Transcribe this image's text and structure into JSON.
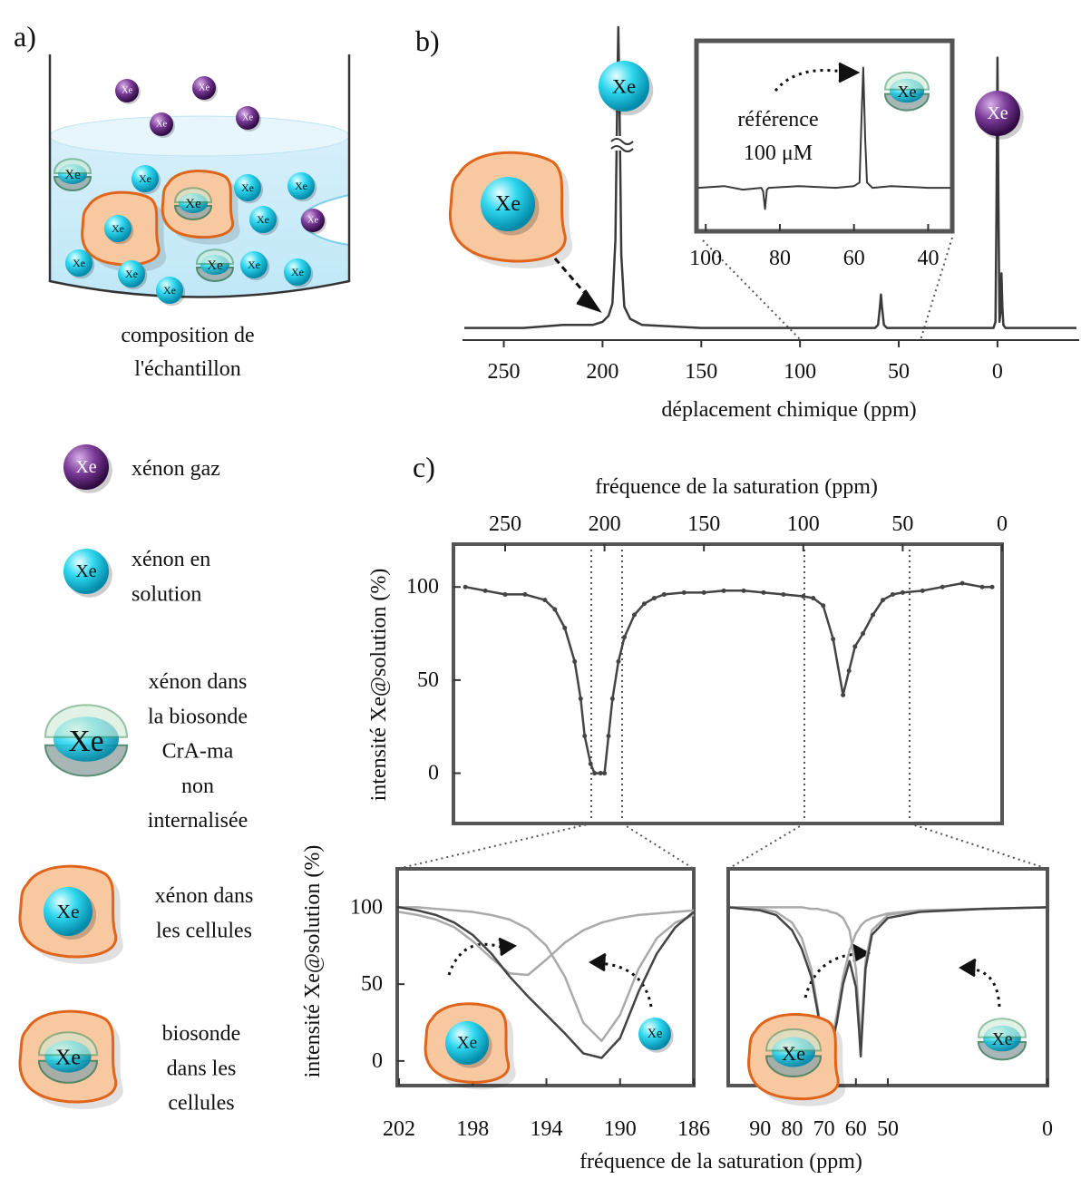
{
  "panels": {
    "a": "a)",
    "b": "b)",
    "c": "c)"
  },
  "icon_label": "Xe",
  "sample_caption": [
    "composition de",
    "l'échantillon"
  ],
  "legend": [
    {
      "lines": [
        "xénon gaz"
      ]
    },
    {
      "lines": [
        "xénon en",
        "solution"
      ]
    },
    {
      "lines": [
        "xénon dans",
        "la biosonde",
        "CrA-ma",
        "non",
        "internalisée"
      ]
    },
    {
      "lines": [
        "xénon dans",
        "les cellules"
      ]
    },
    {
      "lines": [
        "biosonde",
        "dans les",
        "cellules"
      ]
    }
  ],
  "chart_data": [
    {
      "type": "line",
      "x_label": "déplacement chimique (ppm)",
      "xlim": [
        270,
        -40
      ],
      "xticks": [
        250,
        200,
        150,
        100,
        50,
        0
      ],
      "ylim": [
        0,
        100
      ],
      "x": [
        270,
        240,
        220,
        205,
        200,
        197,
        195,
        193.5,
        192.5,
        192,
        191.5,
        190.5,
        189,
        186,
        180,
        150,
        120,
        100,
        80,
        62,
        60.5,
        59.5,
        59,
        58.5,
        57.5,
        56,
        40,
        20,
        5,
        2,
        1,
        0.5,
        0,
        -0.5,
        -1,
        -1.5,
        -2,
        -2.5,
        -3,
        -4,
        -6,
        -15,
        -30,
        -40
      ],
      "series": [
        {
          "color": "#3a3a3a",
          "values": [
            1,
            1,
            2,
            2,
            3,
            5,
            9,
            30,
            80,
            100,
            80,
            25,
            8,
            4,
            2,
            1,
            1,
            1,
            1,
            1,
            2,
            8,
            12,
            8,
            2,
            1,
            1,
            1,
            1,
            1,
            3,
            40,
            90,
            40,
            3,
            6,
            19,
            8,
            2,
            1,
            1,
            1,
            1,
            1
          ]
        }
      ]
    },
    {
      "type": "line",
      "annotations": [
        "référence",
        "100 μM"
      ],
      "xlim": [
        102,
        34
      ],
      "xticks": [
        100,
        80,
        60,
        40
      ],
      "ylim": [
        0,
        100
      ],
      "x": [
        102,
        95,
        90,
        85,
        84.5,
        84,
        83.5,
        83,
        75,
        65,
        60,
        58.5,
        58,
        57.5,
        57,
        56.5,
        55,
        50,
        40,
        34
      ],
      "series": [
        {
          "color": "#3a3a3a",
          "values": [
            22,
            23,
            21,
            22,
            20,
            10,
            21,
            22,
            23,
            22,
            23,
            25,
            60,
            90,
            50,
            25,
            22,
            23,
            22,
            22
          ]
        }
      ]
    },
    {
      "type": "line",
      "x_label": "fréquence de la saturation (ppm)",
      "y_label": "intensité Xe@solution (%)",
      "xlim": [
        276,
        0
      ],
      "xticks": [
        250,
        200,
        150,
        100,
        50,
        0
      ],
      "ylim": [
        -27,
        123
      ],
      "yticks": [
        0,
        50,
        100
      ],
      "markers": true,
      "x": [
        270,
        260,
        250,
        240,
        230,
        225,
        220,
        215,
        212,
        210,
        207,
        205,
        202,
        200,
        198,
        196,
        193,
        190,
        185,
        180,
        175,
        170,
        160,
        150,
        140,
        130,
        120,
        110,
        100,
        95,
        90,
        85,
        80,
        77,
        74,
        70,
        65,
        60,
        55,
        50,
        40,
        30,
        20,
        10,
        5
      ],
      "series": [
        {
          "color": "#444444",
          "values": [
            100,
            98,
            96,
            96,
            93,
            88,
            78,
            60,
            40,
            20,
            5,
            0,
            0,
            0,
            20,
            40,
            60,
            73,
            85,
            91,
            94,
            96,
            97,
            97,
            98,
            98,
            97,
            96,
            95,
            94,
            90,
            72,
            42,
            55,
            68,
            75,
            85,
            93,
            96,
            97,
            98,
            100,
            102,
            100,
            100
          ]
        }
      ]
    },
    {
      "type": "line",
      "x_label": "fréquence de la saturation (ppm)",
      "y_label": "intensité Xe@solution (%)",
      "xlim": [
        202.1,
        186
      ],
      "xticks": [
        202,
        198,
        194,
        190,
        186
      ],
      "ylim": [
        -16,
        125
      ],
      "yticks": [
        0,
        50,
        100
      ],
      "x": [
        202,
        201,
        200,
        199,
        198,
        197,
        196,
        195,
        194,
        193,
        192,
        191,
        190,
        189,
        188,
        187,
        186
      ],
      "series": [
        {
          "color": "#aaaaaa",
          "values": [
            97,
            95,
            92,
            87,
            78,
            67,
            57,
            56,
            66,
            77,
            85,
            90,
            93,
            95,
            96,
            97,
            98
          ]
        },
        {
          "color": "#aaaaaa",
          "values": [
            100,
            100,
            99,
            98,
            97,
            95,
            92,
            86,
            75,
            55,
            25,
            13,
            30,
            60,
            80,
            90,
            95
          ]
        },
        {
          "color": "#444444",
          "values": [
            100,
            98,
            95,
            90,
            82,
            70,
            55,
            42,
            30,
            18,
            5,
            2,
            15,
            45,
            70,
            87,
            97
          ]
        }
      ]
    },
    {
      "type": "line",
      "xlim": [
        100,
        0
      ],
      "xticks": [
        90,
        80,
        70,
        60,
        50,
        0
      ],
      "ylim": [
        -16,
        125
      ],
      "x": [
        100,
        95,
        90,
        85,
        80,
        77,
        74,
        72,
        70,
        69,
        68,
        66,
        64,
        62,
        60,
        59,
        58.5,
        58,
        57,
        55,
        50,
        40,
        20,
        0
      ],
      "series": [
        {
          "color": "#aaaaaa",
          "values": [
            100,
            100,
            99,
            97,
            90,
            80,
            60,
            35,
            8,
            3,
            8,
            30,
            55,
            72,
            83,
            86,
            88,
            89,
            91,
            93,
            96,
            98,
            99,
            100
          ]
        },
        {
          "color": "#aaaaaa",
          "values": [
            100,
            100,
            100,
            100,
            100,
            100,
            99,
            99,
            98,
            98,
            97,
            96,
            93,
            85,
            60,
            30,
            8,
            30,
            65,
            85,
            95,
            98,
            99,
            100
          ]
        },
        {
          "color": "#444444",
          "values": [
            100,
            99,
            98,
            95,
            85,
            73,
            55,
            32,
            6,
            2,
            6,
            25,
            50,
            65,
            48,
            20,
            3,
            22,
            60,
            82,
            93,
            97,
            99,
            100
          ]
        }
      ]
    }
  ]
}
